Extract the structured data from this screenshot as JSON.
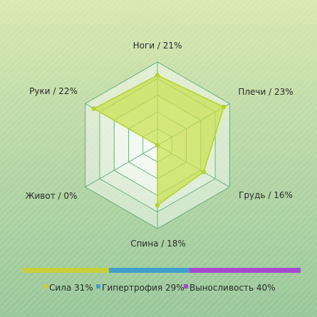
{
  "chart_data": {
    "type": "radar",
    "title": "",
    "categories": [
      "Ноги",
      "Плечи",
      "Грудь",
      "Спина",
      "Живот",
      "Руки"
    ],
    "values": [
      21,
      23,
      16,
      18,
      0,
      22
    ],
    "axis_labels": [
      "Ноги / 21%",
      "Плечи / 23%",
      "Грудь / 16%",
      "Спина / 18%",
      "Живот / 0%",
      "Руки / 22%"
    ],
    "rmax": 25,
    "grid_levels": 5,
    "fill_color": "#c8e04a",
    "stroke_color": "#b5d12a",
    "grid_color": "#4fa86a"
  },
  "legend": {
    "items": [
      {
        "label": "Сила 31%",
        "percent": 31,
        "color": "#c9cf3a"
      },
      {
        "label": "Гипертрофия 29%",
        "percent": 29,
        "color": "#3fa0cc"
      },
      {
        "label": "Выносливость 40%",
        "percent": 40,
        "color": "#a44ad0"
      }
    ]
  }
}
